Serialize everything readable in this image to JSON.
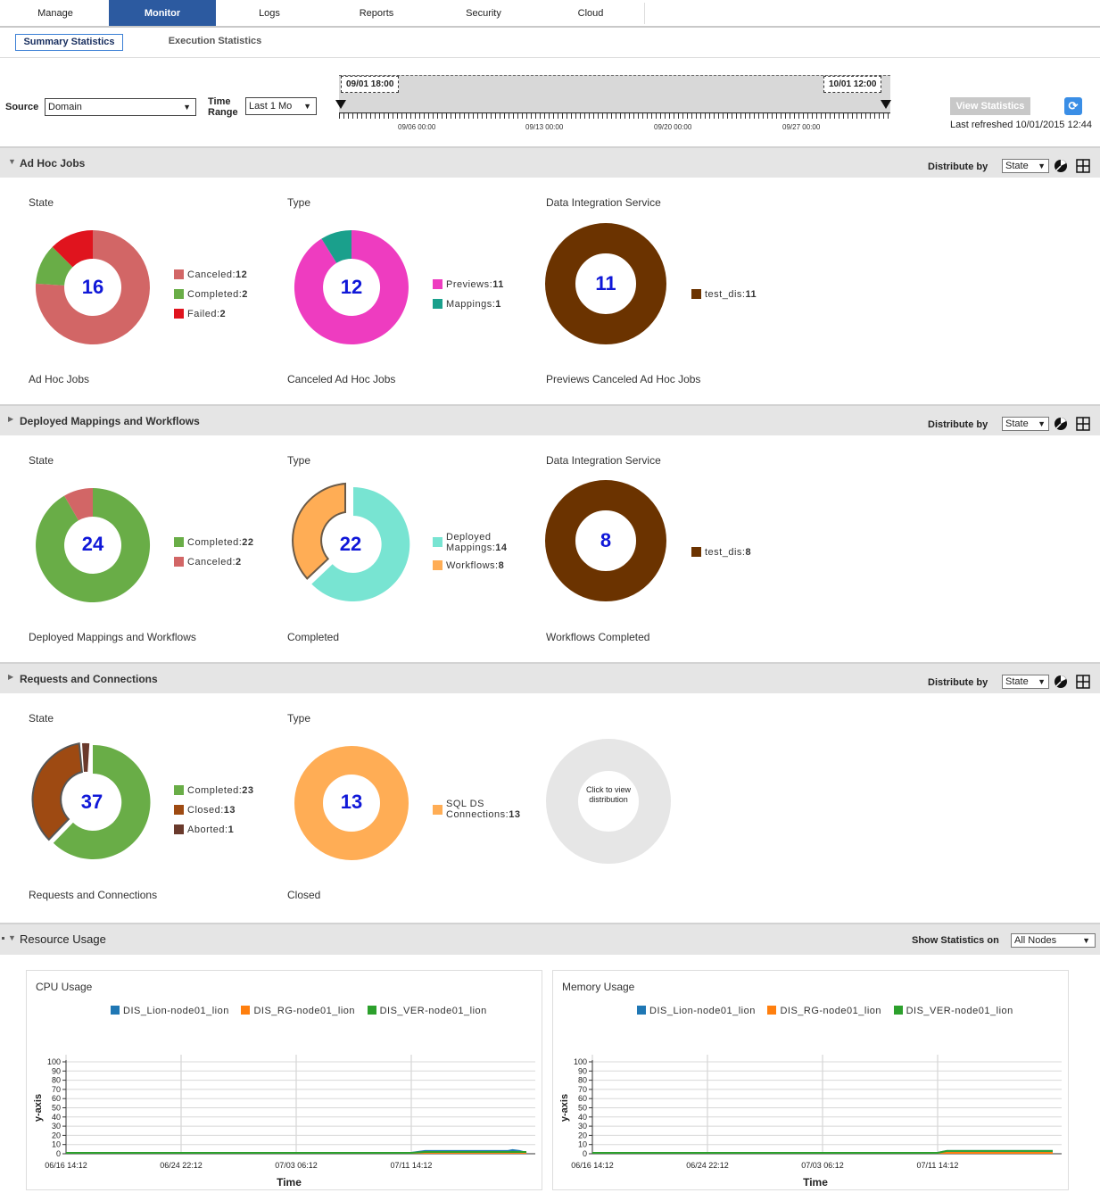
{
  "nav": {
    "tabs": [
      {
        "label": "Manage"
      },
      {
        "label": "Monitor"
      },
      {
        "label": "Logs"
      },
      {
        "label": "Reports"
      },
      {
        "label": "Security"
      },
      {
        "label": "Cloud"
      }
    ],
    "active": "Monitor"
  },
  "subtabs": {
    "summary": "Summary Statistics",
    "execution": "Execution Statistics"
  },
  "filter": {
    "source_label": "Source",
    "source_value": "Domain",
    "time_range_label_1": "Time",
    "time_range_label_2": "Range",
    "time_range_value": "Last 1 Mo",
    "range_start": "09/01 18:00",
    "range_end": "10/01 12:00",
    "axis_ticks": [
      "09/06 00:00",
      "09/13 00:00",
      "09/20 00:00",
      "09/27 00:00"
    ],
    "view_statistics": "View Statistics",
    "last_refreshed": "Last refreshed 10/01/2015 12:44"
  },
  "sections": {
    "adhoc": {
      "title": "Ad Hoc Jobs",
      "distribute_label": "Distribute by",
      "distribute_value": "State",
      "charts": [
        {
          "heading": "State",
          "total": "16",
          "caption": "Ad Hoc Jobs",
          "legend": [
            {
              "label": "Canceled:",
              "value": "12"
            },
            {
              "label": "Completed:",
              "value": "2"
            },
            {
              "label": "Failed:",
              "value": "2"
            }
          ]
        },
        {
          "heading": "Type",
          "total": "12",
          "caption": "Canceled Ad Hoc Jobs",
          "legend": [
            {
              "label": "Previews:",
              "value": "11"
            },
            {
              "label": "Mappings:",
              "value": "1"
            }
          ]
        },
        {
          "heading": "Data Integration Service",
          "total": "11",
          "caption": "Previews Canceled Ad Hoc Jobs",
          "legend": [
            {
              "label": "test_dis:",
              "value": "11"
            }
          ]
        }
      ]
    },
    "deployed": {
      "title": "Deployed Mappings and Workflows",
      "distribute_label": "Distribute by",
      "distribute_value": "State",
      "charts": [
        {
          "heading": "State",
          "total": "24",
          "caption": "Deployed Mappings and Workflows",
          "legend": [
            {
              "label": "Completed:",
              "value": "22"
            },
            {
              "label": "Canceled:",
              "value": "2"
            }
          ]
        },
        {
          "heading": "Type",
          "total": "22",
          "caption": "Completed",
          "legend": [
            {
              "label": "Deployed Mappings:",
              "value": "14"
            },
            {
              "label": "Workflows:",
              "value": "8"
            }
          ]
        },
        {
          "heading": "Data Integration Service",
          "total": "8",
          "caption": "Workflows Completed",
          "legend": [
            {
              "label": "test_dis:",
              "value": "8"
            }
          ]
        }
      ]
    },
    "requests": {
      "title": "Requests and Connections",
      "distribute_label": "Distribute by",
      "distribute_value": "State",
      "charts": [
        {
          "heading": "State",
          "total": "37",
          "caption": "Requests and Connections",
          "legend": [
            {
              "label": "Completed:",
              "value": "23"
            },
            {
              "label": "Closed:",
              "value": "13"
            },
            {
              "label": "Aborted:",
              "value": "1"
            }
          ]
        },
        {
          "heading": "Type",
          "total": "13",
          "caption": "Closed",
          "legend": [
            {
              "label": "SQL DS Connections:",
              "value": "13"
            }
          ]
        }
      ],
      "placeholder": "Click to view distribution"
    }
  },
  "resource": {
    "title": "Resource Usage",
    "show_on_label": "Show Statistics on",
    "show_on_value": "All Nodes"
  },
  "colors": {
    "canceled": "#d26666",
    "completed": "#69ad47",
    "failed": "#e0141e",
    "previews": "#ee3cc0",
    "mappings": "#1aa08c",
    "test_dis": "#6b3300",
    "deployed_mappings": "#78e4d2",
    "workflows": "#ffad55",
    "closed": "#9e4a12",
    "aborted": "#6a3a2c",
    "sql_ds": "#ffad55",
    "lion": "#1f77b4",
    "rg": "#ff7f0e",
    "ver": "#2ca02c"
  },
  "chart_data": [
    {
      "type": "line",
      "title": "CPU Usage",
      "xlabel": "Time",
      "ylabel": "y-axis",
      "x_ticks": [
        "06/16 14:12",
        "06/24 22:12",
        "07/03 06:12",
        "07/11 14:12"
      ],
      "y_ticks": [
        0,
        10,
        20,
        30,
        40,
        50,
        60,
        70,
        80,
        90,
        100
      ],
      "ylim": [
        0,
        100
      ],
      "grid": true,
      "legend_position": "top",
      "series": [
        {
          "name": "DIS_Lion-node01_lion",
          "color": "#1f77b4",
          "x": [
            0,
            0.75,
            0.78,
            0.96,
            0.97,
            0.985,
            1.0
          ],
          "values": [
            1,
            1,
            3,
            3,
            4,
            3,
            1
          ]
        },
        {
          "name": "DIS_RG-node01_lion",
          "color": "#ff7f0e",
          "x": [
            0,
            1.0
          ],
          "values": [
            1,
            1
          ]
        },
        {
          "name": "DIS_VER-node01_lion",
          "color": "#2ca02c",
          "x": [
            0,
            0.75,
            0.78,
            1.0
          ],
          "values": [
            1,
            1,
            2,
            2
          ]
        }
      ]
    },
    {
      "type": "line",
      "title": "Memory Usage",
      "xlabel": "Time",
      "ylabel": "y-axis",
      "x_ticks": [
        "06/16 14:12",
        "06/24 22:12",
        "07/03 06:12",
        "07/11 14:12"
      ],
      "y_ticks": [
        0,
        10,
        20,
        30,
        40,
        50,
        60,
        70,
        80,
        90,
        100
      ],
      "ylim": [
        0,
        100
      ],
      "grid": true,
      "legend_position": "top",
      "series": [
        {
          "name": "DIS_Lion-node01_lion",
          "color": "#1f77b4",
          "x": [
            0,
            0.75,
            0.77,
            1.0
          ],
          "values": [
            1,
            1,
            3,
            3
          ]
        },
        {
          "name": "DIS_RG-node01_lion",
          "color": "#ff7f0e",
          "x": [
            0,
            1.0
          ],
          "values": [
            1,
            1
          ]
        },
        {
          "name": "DIS_VER-node01_lion",
          "color": "#2ca02c",
          "x": [
            0,
            0.75,
            0.77,
            1.0
          ],
          "values": [
            1,
            1,
            3,
            3
          ]
        }
      ]
    }
  ]
}
